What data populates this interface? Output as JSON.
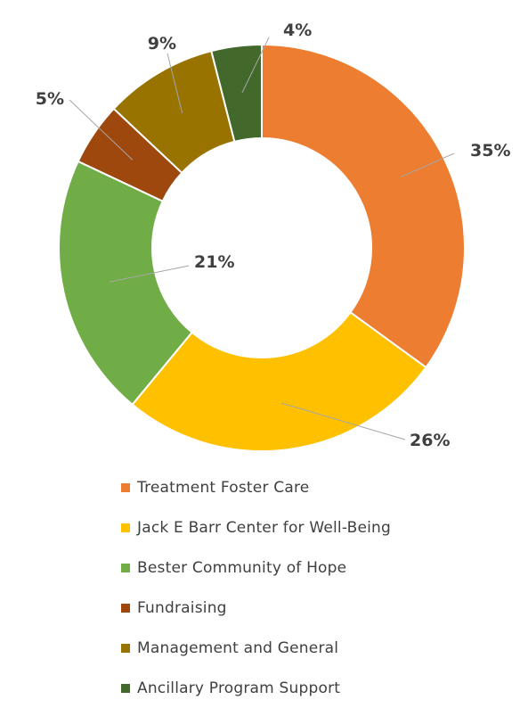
{
  "chart_data": {
    "type": "pie",
    "donut": true,
    "categories": [
      "Treatment Foster Care",
      "Jack E Barr Center for Well-Being",
      "Bester Community of Hope",
      "Fundraising",
      "Management and General",
      "Ancillary Program Support"
    ],
    "values": [
      35,
      26,
      21,
      5,
      9,
      4
    ],
    "data_labels": [
      "35%",
      "26%",
      "21%",
      "5%",
      "9%",
      "4%"
    ],
    "colors": [
      "#ED7D31",
      "#FFC000",
      "#70AD47",
      "#9E480E",
      "#997300",
      "#43682B"
    ],
    "legend_position": "bottom",
    "title": "",
    "start_angle": "top, clockwise"
  }
}
